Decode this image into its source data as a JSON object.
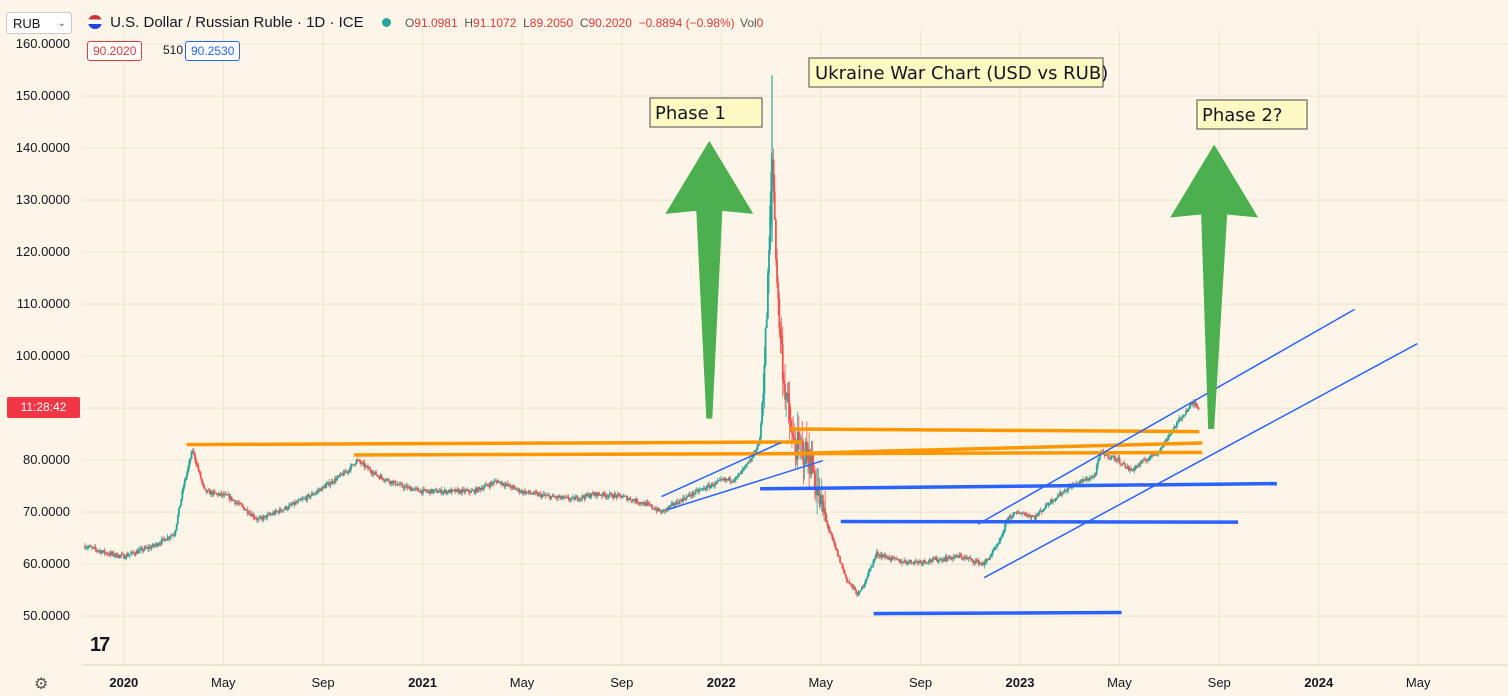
{
  "header": {
    "symbol_box": "RUB",
    "title": "U.S. Dollar / Russian Ruble · 1D · ICE",
    "ohlc": {
      "o_label": "O",
      "o": "91.0981",
      "h_label": "H",
      "h": "91.1072",
      "l_label": "L",
      "l": "89.2050",
      "c_label": "C",
      "c": "90.2020",
      "change": "−0.8894 (−0.98%)"
    },
    "vol_label": "Vol",
    "vol": "0",
    "pill_bid": "90.2020",
    "pill_spread": "510",
    "pill_ask": "90.2530"
  },
  "countdown": "11:28:42",
  "colors": {
    "bg": "#fdf5e8",
    "up": "#26a69a",
    "down": "#ef5350",
    "orange": "#ff9800",
    "blue": "#2962ff",
    "green_arrow": "#4caf50"
  },
  "chart_data": {
    "type": "candlestick",
    "y_ticks": [
      "50.0000",
      "60.0000",
      "70.0000",
      "80.0000",
      "90.0000",
      "100.0000",
      "110.0000",
      "120.0000",
      "130.0000",
      "140.0000",
      "150.0000",
      "160.0000"
    ],
    "ylim": [
      45,
      162
    ],
    "x_ticks": [
      {
        "label": "2020",
        "t": 2020.0,
        "bold": true
      },
      {
        "label": "May",
        "t": 2020.333
      },
      {
        "label": "Sep",
        "t": 2020.667
      },
      {
        "label": "2021",
        "t": 2021.0,
        "bold": true
      },
      {
        "label": "May",
        "t": 2021.333
      },
      {
        "label": "Sep",
        "t": 2021.667
      },
      {
        "label": "2022",
        "t": 2022.0,
        "bold": true
      },
      {
        "label": "May",
        "t": 2022.333
      },
      {
        "label": "Sep",
        "t": 2022.667
      },
      {
        "label": "2023",
        "t": 2023.0,
        "bold": true
      },
      {
        "label": "May",
        "t": 2023.333
      },
      {
        "label": "Sep",
        "t": 2023.667
      },
      {
        "label": "2024",
        "t": 2024.0,
        "bold": true
      },
      {
        "label": "May",
        "t": 2024.333
      }
    ],
    "xlim": [
      2019.86,
      2024.56
    ],
    "price_path": [
      [
        2019.87,
        63.5
      ],
      [
        2019.95,
        62.0
      ],
      [
        2020.0,
        61.5
      ],
      [
        2020.1,
        63.5
      ],
      [
        2020.17,
        66
      ],
      [
        2020.2,
        75
      ],
      [
        2020.23,
        82
      ],
      [
        2020.27,
        74
      ],
      [
        2020.35,
        73
      ],
      [
        2020.42,
        70
      ],
      [
        2020.45,
        68.5
      ],
      [
        2020.55,
        71
      ],
      [
        2020.62,
        73
      ],
      [
        2020.7,
        76
      ],
      [
        2020.75,
        78
      ],
      [
        2020.78,
        80
      ],
      [
        2020.85,
        77
      ],
      [
        2020.93,
        75
      ],
      [
        2021.0,
        74
      ],
      [
        2021.08,
        74
      ],
      [
        2021.17,
        74
      ],
      [
        2021.25,
        76
      ],
      [
        2021.33,
        74
      ],
      [
        2021.42,
        73
      ],
      [
        2021.5,
        72.5
      ],
      [
        2021.58,
        73.5
      ],
      [
        2021.67,
        73
      ],
      [
        2021.75,
        71.5
      ],
      [
        2021.8,
        70
      ],
      [
        2021.87,
        72.5
      ],
      [
        2021.92,
        74
      ],
      [
        2022.0,
        76
      ],
      [
        2022.05,
        76.5
      ],
      [
        2022.1,
        80
      ],
      [
        2022.13,
        84
      ],
      [
        2022.15,
        105
      ],
      [
        2022.16,
        120
      ],
      [
        2022.17,
        140
      ],
      [
        2022.19,
        110
      ],
      [
        2022.21,
        95
      ],
      [
        2022.24,
        83
      ],
      [
        2022.27,
        82
      ],
      [
        2022.3,
        80
      ],
      [
        2022.33,
        72
      ],
      [
        2022.37,
        65
      ],
      [
        2022.42,
        57
      ],
      [
        2022.46,
        54
      ],
      [
        2022.49,
        58
      ],
      [
        2022.52,
        62
      ],
      [
        2022.6,
        60.5
      ],
      [
        2022.67,
        60.5
      ],
      [
        2022.74,
        61
      ],
      [
        2022.8,
        61.5
      ],
      [
        2022.88,
        60
      ],
      [
        2022.93,
        64
      ],
      [
        2022.96,
        69
      ],
      [
        2023.0,
        70
      ],
      [
        2023.05,
        69
      ],
      [
        2023.1,
        72
      ],
      [
        2023.17,
        75
      ],
      [
        2023.25,
        77
      ],
      [
        2023.27,
        81.5
      ],
      [
        2023.33,
        80
      ],
      [
        2023.37,
        78
      ],
      [
        2023.42,
        80
      ],
      [
        2023.47,
        82
      ],
      [
        2023.5,
        85
      ],
      [
        2023.55,
        89
      ],
      [
        2023.58,
        91
      ],
      [
        2023.6,
        90.2
      ]
    ],
    "drawings": {
      "orange_lines": [
        {
          "from": [
            2020.21,
            83.0
          ],
          "to": [
            2022.27,
            83.5
          ]
        },
        {
          "from": [
            2020.77,
            81.0
          ],
          "to": [
            2023.61,
            81.5
          ]
        },
        {
          "from": [
            2022.23,
            86.0
          ],
          "to": [
            2023.6,
            85.5
          ]
        },
        {
          "from": [
            2022.25,
            81.3
          ],
          "to": [
            2023.61,
            83.3
          ]
        }
      ],
      "blue_lines": [
        {
          "from": [
            2021.8,
            73.0
          ],
          "to": [
            2022.2,
            83.4
          ]
        },
        {
          "from": [
            2021.82,
            70.5
          ],
          "to": [
            2022.34,
            79.9
          ]
        },
        {
          "from": [
            2022.13,
            74.5
          ],
          "to": [
            2023.86,
            75.5
          ]
        },
        {
          "from": [
            2022.4,
            68.2
          ],
          "to": [
            2023.73,
            68.1
          ]
        },
        {
          "from": [
            2022.51,
            50.5
          ],
          "to": [
            2023.34,
            50.7
          ]
        },
        {
          "from": [
            2022.86,
            67.7
          ],
          "to": [
            2024.12,
            109.0
          ]
        },
        {
          "from": [
            2022.88,
            57.4
          ],
          "to": [
            2024.33,
            102.4
          ]
        }
      ],
      "green_arrows": [
        {
          "label": "phase1",
          "base": [
            2021.96,
            88.0
          ],
          "tip": [
            2021.96,
            141.4
          ]
        },
        {
          "label": "phase2",
          "base": [
            2023.64,
            86.0
          ],
          "tip": [
            2023.65,
            140.7
          ]
        }
      ],
      "annotations": [
        {
          "id": "phase1",
          "text": "Phase 1"
        },
        {
          "id": "phase2",
          "text": "Phase 2?"
        },
        {
          "id": "title",
          "text": "Ukraine War Chart (USD vs RUB)"
        }
      ]
    }
  }
}
